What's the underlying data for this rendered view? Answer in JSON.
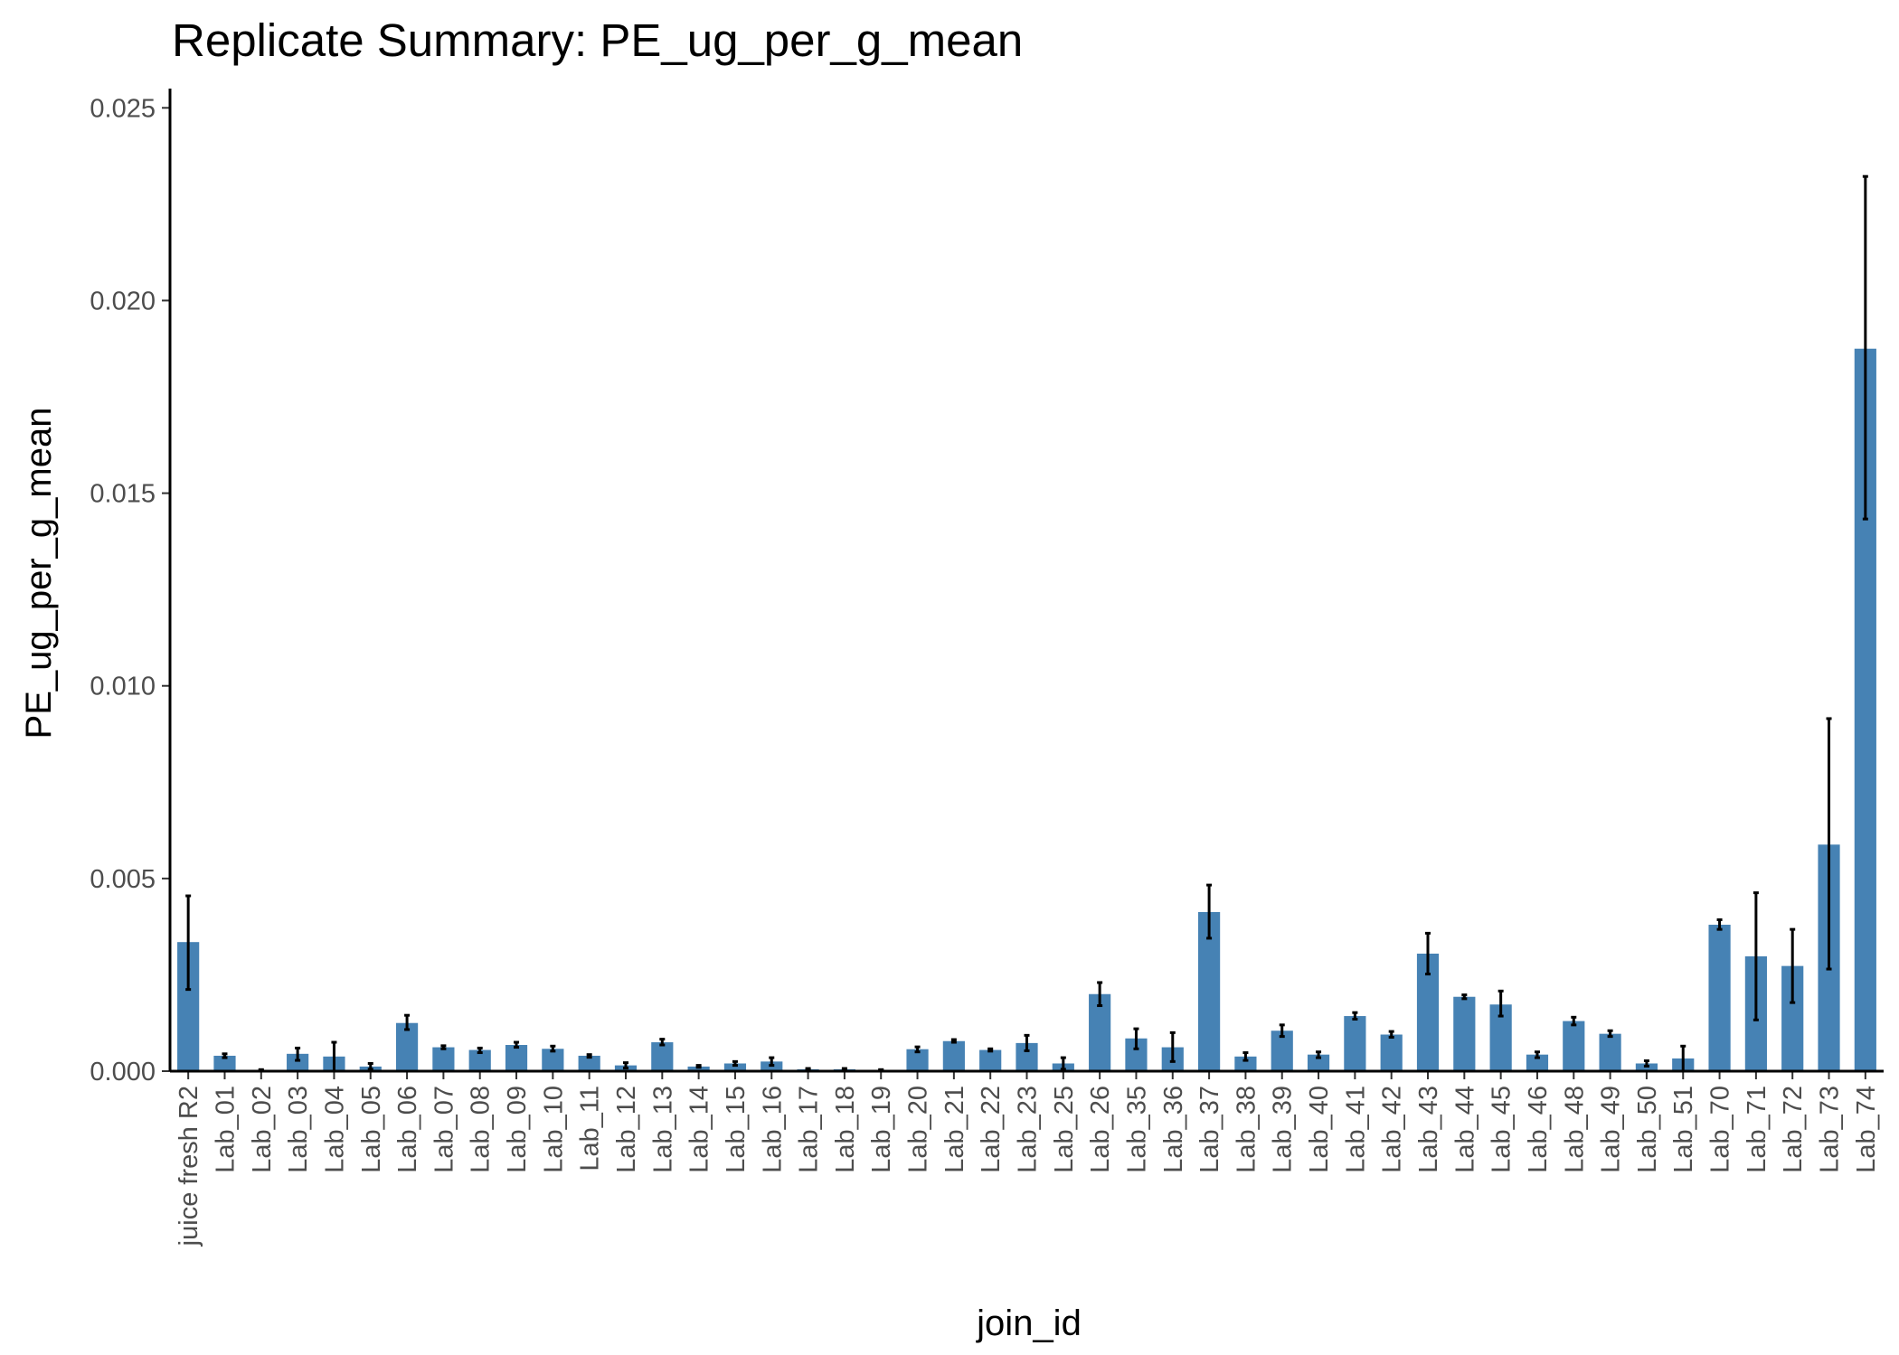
{
  "chart_data": {
    "type": "bar",
    "title": "Replicate Summary: PE_ug_per_g_mean",
    "xlabel": "join_id",
    "ylabel": "PE_ug_per_g_mean",
    "ylim": [
      0,
      0.0255
    ],
    "yticks": [
      "0.000",
      "0.005",
      "0.010",
      "0.015",
      "0.020",
      "0.025"
    ],
    "ytick_values": [
      0,
      0.005,
      0.01,
      0.015,
      0.02,
      0.025
    ],
    "bar_color": "#4682b4",
    "errorbar_color": "#000000",
    "grid": false,
    "legend": "none",
    "categories": [
      "juice fresh R2",
      "Lab_01",
      "Lab_02",
      "Lab_03",
      "Lab_04",
      "Lab_05",
      "Lab_06",
      "Lab_07",
      "Lab_08",
      "Lab_09",
      "Lab_10",
      "Lab_11",
      "Lab_12",
      "Lab_13",
      "Lab_14",
      "Lab_15",
      "Lab_16",
      "Lab_17",
      "Lab_18",
      "Lab_19",
      "Lab_20",
      "Lab_21",
      "Lab_22",
      "Lab_23",
      "Lab_25",
      "Lab_26",
      "Lab_35",
      "Lab_36",
      "Lab_37",
      "Lab_38",
      "Lab_39",
      "Lab_40",
      "Lab_41",
      "Lab_42",
      "Lab_43",
      "Lab_44",
      "Lab_45",
      "Lab_46",
      "Lab_48",
      "Lab_49",
      "Lab_50",
      "Lab_51",
      "Lab_70",
      "Lab_71",
      "Lab_72",
      "Lab_73",
      "Lab_74"
    ],
    "values": [
      0.00335,
      0.0004,
      3e-05,
      0.00045,
      0.00038,
      0.00012,
      0.00125,
      0.00062,
      0.00055,
      0.00068,
      0.00058,
      0.0004,
      0.00015,
      0.00075,
      0.00012,
      0.0002,
      0.00025,
      5e-05,
      5e-05,
      3e-05,
      0.00057,
      0.00078,
      0.00055,
      0.00073,
      0.0002,
      0.002,
      0.00085,
      0.00062,
      0.00413,
      0.00038,
      0.00105,
      0.00043,
      0.00143,
      0.00095,
      0.00305,
      0.00193,
      0.00173,
      0.00043,
      0.0013,
      0.00097,
      0.0002,
      0.00033,
      0.0038,
      0.00298,
      0.00273,
      0.00588,
      0.01875
    ],
    "err_low": [
      0.00212,
      0.00035,
      2e-05,
      0.00028,
      0.0,
      5e-05,
      0.00108,
      0.00058,
      0.00048,
      0.00062,
      0.00052,
      0.00036,
      8e-05,
      0.00068,
      0.0001,
      0.00015,
      0.00015,
      3e-05,
      3e-05,
      2e-05,
      0.0005,
      0.00075,
      0.00052,
      0.00053,
      5e-05,
      0.0017,
      0.00058,
      0.00025,
      0.00345,
      0.00028,
      0.0009,
      0.00035,
      0.00135,
      0.00088,
      0.00252,
      0.00188,
      0.00143,
      0.00035,
      0.0012,
      0.0009,
      0.00013,
      0.0,
      0.00368,
      0.00133,
      0.00178,
      0.00265,
      0.01433
    ],
    "err_high": [
      0.00455,
      0.00045,
      4e-05,
      0.0006,
      0.00075,
      0.0002,
      0.00145,
      0.00066,
      0.0006,
      0.00075,
      0.00065,
      0.00043,
      0.00022,
      0.00083,
      0.00015,
      0.00025,
      0.00035,
      7e-05,
      7e-05,
      4e-05,
      0.00063,
      0.00082,
      0.00058,
      0.00093,
      0.00035,
      0.0023,
      0.0011,
      0.001,
      0.00483,
      0.00048,
      0.0012,
      0.0005,
      0.00152,
      0.00103,
      0.00358,
      0.00198,
      0.00208,
      0.0005,
      0.0014,
      0.00105,
      0.00027,
      0.00065,
      0.00393,
      0.00463,
      0.00368,
      0.00915,
      0.02322
    ]
  }
}
